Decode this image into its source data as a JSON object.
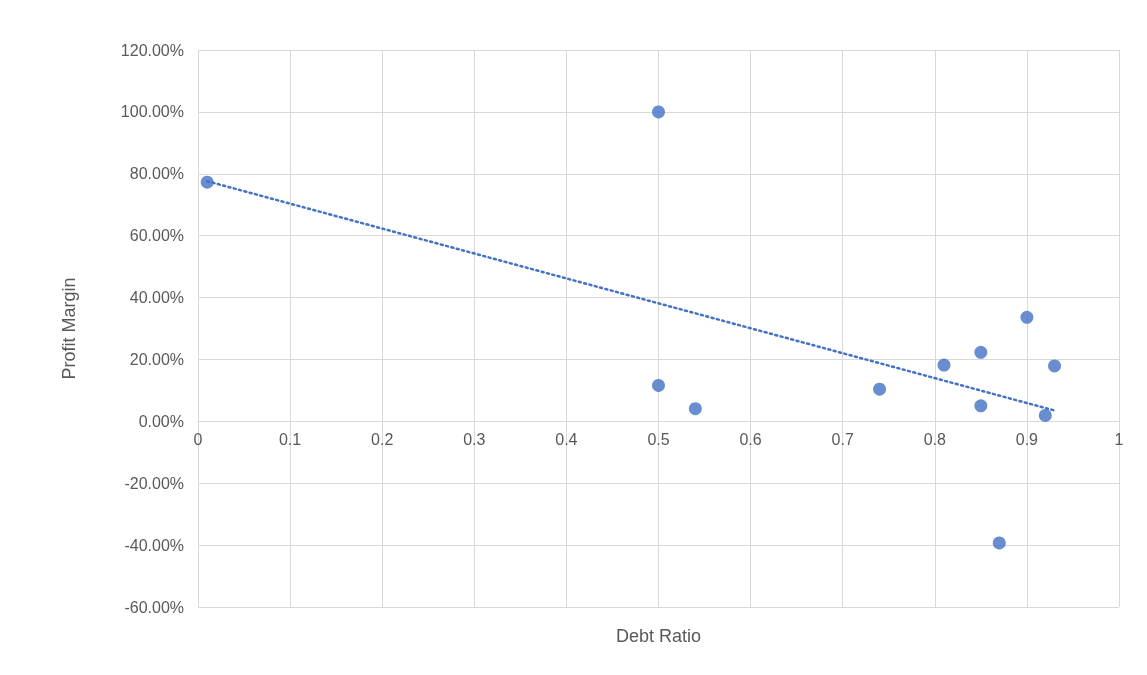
{
  "chart_data": {
    "type": "scatter",
    "xlabel": "Debt Ratio",
    "ylabel": "Profit Margin",
    "xlim": [
      0,
      1
    ],
    "xticks": [
      0,
      0.1,
      0.2,
      0.3,
      0.4,
      0.5,
      0.6,
      0.7,
      0.8,
      0.9,
      1
    ],
    "ylim": [
      -60,
      120
    ],
    "yticks": [
      {
        "value": -60,
        "label": "-60.00%"
      },
      {
        "value": -40,
        "label": "-40.00%"
      },
      {
        "value": -20,
        "label": "-20.00%"
      },
      {
        "value": 0,
        "label": "0.00%"
      },
      {
        "value": 20,
        "label": "20.00%"
      },
      {
        "value": 40,
        "label": "40.00%"
      },
      {
        "value": 60,
        "label": "60.00%"
      },
      {
        "value": 80,
        "label": "80.00%"
      },
      {
        "value": 100,
        "label": "100.00%"
      },
      {
        "value": 120,
        "label": "120.00%"
      }
    ],
    "grid": true,
    "marker": "circle",
    "series": [
      {
        "color": "#4472c4",
        "x": [
          0.01,
          0.5,
          0.5,
          0.54,
          0.74,
          0.81,
          0.85,
          0.85,
          0.87,
          0.9,
          0.92,
          0.93
        ],
        "values": [
          77.3,
          100,
          11.6,
          4.1,
          10.4,
          18.2,
          22.3,
          5.0,
          -39.3,
          33.6,
          1.9,
          17.9
        ]
      },
      {
        "type": "line",
        "line_style": "dotted",
        "marker": "none",
        "color": "#4472c4",
        "x": [
          0.01,
          0.93
        ],
        "values": [
          77.6,
          3.5
        ]
      }
    ]
  }
}
